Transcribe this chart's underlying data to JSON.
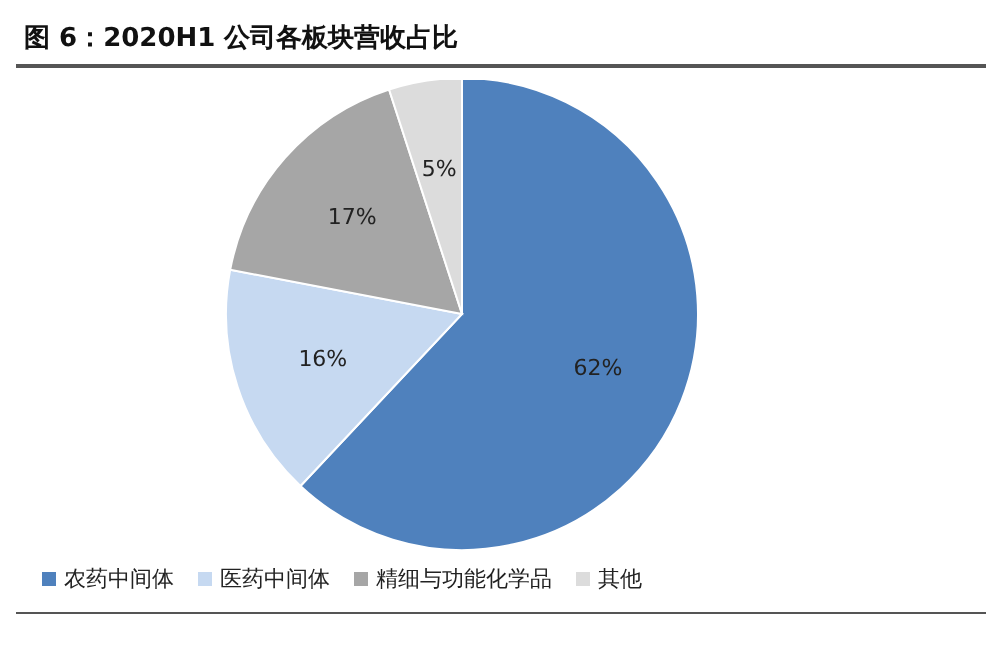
{
  "chart_data": {
    "type": "pie",
    "title": "图 6：2020H1 公司各板块营收占比",
    "categories": [
      "农药中间体",
      "医药中间体",
      "精细与功能化学品",
      "其他"
    ],
    "values": [
      62,
      16,
      17,
      5
    ],
    "colors": [
      "#4f81bd",
      "#c6d9f1",
      "#a6a6a6",
      "#dcdcdc"
    ],
    "value_labels": [
      "62%",
      "16%",
      "17%",
      "5%"
    ],
    "legend": "bottom"
  }
}
